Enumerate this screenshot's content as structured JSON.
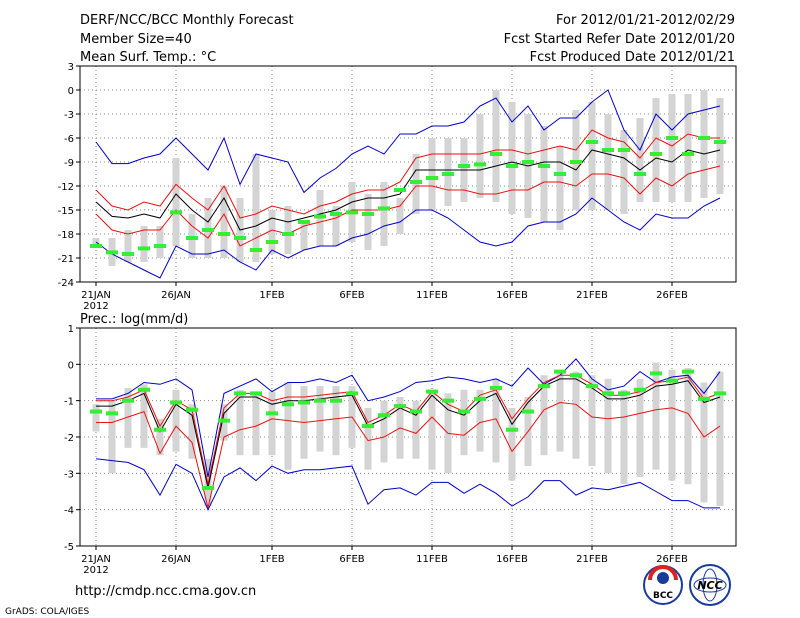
{
  "header": {
    "title": "DERF/NCC/BCC Monthly Forecast",
    "member_size": "Member Size=40",
    "variable": "Mean Surf. Temp.: °C",
    "period": "For 2012/01/21-2012/02/29",
    "started": "Fcst Started Refer Date 2012/01/20",
    "produced": "Fcst Produced Date 2012/01/21"
  },
  "footer": {
    "url": "http://cmdp.ncc.cma.gov.cn",
    "credit": "GrADS: COLA/IGES",
    "logo_bcc": "BCC",
    "logo_ncc": "NCC"
  },
  "colors": {
    "envelope": "#0000cc",
    "spread": "#ee1111",
    "mean": "#000000",
    "box": "#d4d4d4",
    "marker": "#33ee33",
    "grid": "#888888"
  },
  "x_tick_labels": [
    "21JAN",
    "26JAN",
    "1FEB",
    "6FEB",
    "11FEB",
    "16FEB",
    "21FEB",
    "26FEB"
  ],
  "x_year_label": "2012",
  "chart_data": [
    {
      "type": "line",
      "title": "Mean Surf. Temp.: °C",
      "x_days": 40,
      "x_tick_day_index": [
        0,
        5,
        11,
        16,
        21,
        26,
        31,
        36
      ],
      "ylim": [
        -24,
        3
      ],
      "yticks": [
        3,
        0,
        -3,
        -6,
        -9,
        -12,
        -15,
        -18,
        -21,
        -24
      ],
      "series": [
        {
          "name": "max",
          "values": [
            -6.5,
            -9.2,
            -9.2,
            -8.5,
            -8.0,
            -6.0,
            -8.0,
            -10.0,
            -6.0,
            -11.8,
            -8.0,
            -8.5,
            -9.0,
            -12.8,
            -11.0,
            -9.8,
            -8.0,
            -7.0,
            -8.0,
            -5.5,
            -5.5,
            -4.5,
            -4.5,
            -4.0,
            -2.0,
            -1.0,
            -4.0,
            -2.0,
            -5.0,
            -3.5,
            -3.5,
            -1.5,
            0.0,
            -5.0,
            -7.5,
            -3.0,
            -5.0,
            -3.0,
            -2.5,
            -2.0
          ]
        },
        {
          "name": "upper",
          "values": [
            -12.5,
            -14.5,
            -15.0,
            -14.0,
            -14.5,
            -11.8,
            -13.5,
            -15.0,
            -12.0,
            -16.0,
            -15.5,
            -14.5,
            -15.0,
            -15.5,
            -14.5,
            -14.0,
            -13.0,
            -12.5,
            -12.5,
            -11.5,
            -8.5,
            -8.0,
            -8.0,
            -8.0,
            -8.0,
            -7.5,
            -7.5,
            -8.0,
            -7.5,
            -7.0,
            -7.5,
            -5.0,
            -6.0,
            -6.5,
            -8.5,
            -6.0,
            -7.0,
            -5.5,
            -6.0,
            -6.0
          ]
        },
        {
          "name": "mean",
          "values": [
            -14.0,
            -15.8,
            -16.0,
            -15.5,
            -16.0,
            -13.0,
            -15.0,
            -16.5,
            -13.5,
            -17.5,
            -17.0,
            -16.0,
            -16.5,
            -16.0,
            -15.5,
            -15.0,
            -14.0,
            -13.5,
            -13.5,
            -13.0,
            -10.0,
            -10.0,
            -10.0,
            -10.0,
            -10.0,
            -9.5,
            -9.0,
            -9.5,
            -9.0,
            -9.0,
            -10.0,
            -7.5,
            -8.0,
            -8.5,
            -10.0,
            -8.5,
            -9.0,
            -7.5,
            -8.0,
            -7.5
          ]
        },
        {
          "name": "lower",
          "values": [
            -15.5,
            -17.5,
            -18.0,
            -17.5,
            -17.5,
            -15.0,
            -17.0,
            -18.5,
            -15.5,
            -19.5,
            -18.5,
            -17.5,
            -18.0,
            -17.0,
            -16.5,
            -16.0,
            -15.0,
            -15.0,
            -15.0,
            -14.5,
            -12.0,
            -12.0,
            -12.5,
            -12.5,
            -13.0,
            -13.0,
            -12.5,
            -12.5,
            -11.5,
            -11.5,
            -12.0,
            -10.5,
            -10.5,
            -11.0,
            -13.0,
            -11.0,
            -12.0,
            -10.5,
            -10.0,
            -9.5
          ]
        },
        {
          "name": "min",
          "values": [
            -19.0,
            -20.5,
            -21.5,
            -22.5,
            -23.5,
            -19.5,
            -20.5,
            -20.5,
            -20.0,
            -21.5,
            -22.5,
            -20.0,
            -21.0,
            -20.0,
            -19.5,
            -19.5,
            -18.5,
            -18.0,
            -17.0,
            -16.5,
            -15.0,
            -15.0,
            -16.0,
            -17.5,
            -19.0,
            -19.5,
            -19.0,
            -17.0,
            -16.5,
            -16.5,
            -15.5,
            -13.5,
            -15.0,
            -16.5,
            -17.5,
            -15.5,
            -16.0,
            -16.0,
            -14.5,
            -13.5
          ]
        }
      ],
      "boxes": [
        {
          "min": -19.5,
          "max": -18.5
        },
        {
          "min": -22.0,
          "max": -18.5
        },
        {
          "min": -21.5,
          "max": -17.5
        },
        {
          "min": -21.5,
          "max": -17.0
        },
        {
          "min": -21.0,
          "max": -17.0
        },
        {
          "min": -19.5,
          "max": -8.5
        },
        {
          "min": -21.0,
          "max": -15.5
        },
        {
          "min": -21.0,
          "max": -13.5
        },
        {
          "min": -21.0,
          "max": -12.0
        },
        {
          "min": -21.5,
          "max": -13.5
        },
        {
          "min": -21.5,
          "max": -8.0
        },
        {
          "min": -20.5,
          "max": -15.0
        },
        {
          "min": -20.5,
          "max": -14.5
        },
        {
          "min": -20.0,
          "max": -16.5
        },
        {
          "min": -19.5,
          "max": -12.5
        },
        {
          "min": -19.5,
          "max": -14.5
        },
        {
          "min": -19.0,
          "max": -11.5
        },
        {
          "min": -20.0,
          "max": -13.0
        },
        {
          "min": -19.5,
          "max": -11.5
        },
        {
          "min": -18.0,
          "max": -13.5
        },
        {
          "min": -15.5,
          "max": -8.0
        },
        {
          "min": -15.0,
          "max": -6.0
        },
        {
          "min": -14.5,
          "max": -6.0
        },
        {
          "min": -14.0,
          "max": -6.0
        },
        {
          "min": -13.5,
          "max": -3.0
        },
        {
          "min": -14.0,
          "max": 0.0
        },
        {
          "min": -15.5,
          "max": -1.5
        },
        {
          "min": -16.0,
          "max": -3.0
        },
        {
          "min": -16.5,
          "max": -4.5
        },
        {
          "min": -17.5,
          "max": -7.0
        },
        {
          "min": -15.0,
          "max": -2.5
        },
        {
          "min": -15.0,
          "max": -1.5
        },
        {
          "min": -15.0,
          "max": -3.0
        },
        {
          "min": -15.5,
          "max": -5.0
        },
        {
          "min": -14.0,
          "max": -3.5
        },
        {
          "min": -14.0,
          "max": -1.0
        },
        {
          "min": -14.0,
          "max": -0.5
        },
        {
          "min": -14.0,
          "max": -0.5
        },
        {
          "min": -13.5,
          "max": 0.0
        },
        {
          "min": -13.0,
          "max": -1.0
        }
      ],
      "markers": [
        -19.5,
        -20.3,
        -20.5,
        -19.8,
        -19.5,
        -15.3,
        -18.5,
        -17.5,
        -18.0,
        -18.5,
        -20.0,
        -19.0,
        -18.0,
        -16.5,
        -15.8,
        -15.5,
        -15.3,
        -15.5,
        -14.8,
        -12.5,
        -11.5,
        -11.0,
        -10.5,
        -9.5,
        -9.3,
        -8.0,
        -9.5,
        -9.0,
        -9.5,
        -10.5,
        -9.0,
        -6.5,
        -7.5,
        -7.5,
        -10.5,
        -8.0,
        -6.0,
        -8.0,
        -6.0,
        -6.5
      ]
    },
    {
      "type": "line",
      "title": "Prec.: log(mm/d)",
      "x_days": 40,
      "x_tick_day_index": [
        0,
        5,
        11,
        16,
        21,
        26,
        31,
        36
      ],
      "ylim": [
        -5,
        1
      ],
      "yticks": [
        1,
        0,
        -1,
        -2,
        -3,
        -4,
        -5
      ],
      "series": [
        {
          "name": "max",
          "values": [
            -0.95,
            -0.95,
            -0.8,
            -0.5,
            -0.55,
            -0.4,
            -0.7,
            -3.1,
            -0.8,
            -0.6,
            -0.4,
            -0.75,
            -0.5,
            -0.5,
            -0.4,
            -0.5,
            -0.3,
            -1.0,
            -0.9,
            -0.75,
            -0.5,
            -0.45,
            -0.35,
            -0.4,
            -0.5,
            -0.4,
            -0.6,
            -0.1,
            -0.55,
            -0.3,
            0.15,
            -0.4,
            -0.7,
            -0.6,
            -0.2,
            -0.5,
            -0.35,
            -0.3,
            -0.8,
            -0.2
          ]
        },
        {
          "name": "upper",
          "values": [
            -1.0,
            -1.0,
            -0.9,
            -0.7,
            -1.7,
            -1.0,
            -1.25,
            -3.3,
            -1.2,
            -0.8,
            -0.8,
            -1.0,
            -0.9,
            -0.9,
            -0.85,
            -0.8,
            -0.75,
            -1.6,
            -1.4,
            -1.1,
            -1.3,
            -0.75,
            -1.1,
            -1.3,
            -0.85,
            -0.7,
            -1.5,
            -0.95,
            -0.5,
            -0.3,
            -0.3,
            -0.55,
            -0.85,
            -0.85,
            -0.75,
            -0.5,
            -0.45,
            -0.35,
            -0.95,
            -0.8
          ]
        },
        {
          "name": "mean",
          "values": [
            -1.15,
            -1.15,
            -1.0,
            -0.8,
            -1.85,
            -1.1,
            -1.4,
            -3.4,
            -1.35,
            -0.9,
            -0.9,
            -1.1,
            -1.0,
            -1.0,
            -0.95,
            -0.9,
            -0.85,
            -1.7,
            -1.5,
            -1.2,
            -1.4,
            -0.85,
            -1.25,
            -1.4,
            -1.0,
            -0.8,
            -1.65,
            -1.05,
            -0.6,
            -0.4,
            -0.4,
            -0.65,
            -0.95,
            -0.95,
            -0.85,
            -0.6,
            -0.55,
            -0.45,
            -1.05,
            -0.9
          ]
        },
        {
          "name": "lower",
          "values": [
            -1.6,
            -1.6,
            -1.45,
            -1.3,
            -2.45,
            -1.7,
            -2.15,
            -3.95,
            -2.0,
            -1.8,
            -1.7,
            -1.5,
            -1.55,
            -1.6,
            -1.55,
            -1.5,
            -1.45,
            -2.1,
            -2.0,
            -1.75,
            -1.9,
            -1.45,
            -1.9,
            -1.95,
            -1.6,
            -1.5,
            -2.4,
            -1.85,
            -1.25,
            -1.05,
            -1.1,
            -1.45,
            -1.5,
            -1.45,
            -1.35,
            -1.25,
            -1.2,
            -1.35,
            -2.0,
            -1.7
          ]
        },
        {
          "name": "min",
          "values": [
            -2.6,
            -2.65,
            -2.7,
            -2.9,
            -3.6,
            -2.75,
            -3.0,
            -4.0,
            -3.1,
            -2.85,
            -3.2,
            -2.8,
            -3.0,
            -2.9,
            -2.9,
            -2.85,
            -2.8,
            -3.85,
            -3.45,
            -3.4,
            -3.6,
            -3.25,
            -3.25,
            -3.55,
            -3.3,
            -3.55,
            -3.9,
            -3.65,
            -3.2,
            -3.2,
            -3.6,
            -3.4,
            -3.45,
            -3.35,
            -3.25,
            -3.5,
            -3.75,
            -3.75,
            -3.95,
            -3.95
          ]
        },
        {
          "name": "min_extended_marker",
          "values": []
        }
      ],
      "boxes": [
        {
          "min": -1.85,
          "max": -1.1
        },
        {
          "min": -3.0,
          "max": -1.0
        },
        {
          "min": -2.3,
          "max": -0.65
        },
        {
          "min": -2.3,
          "max": -0.55
        },
        {
          "min": -2.5,
          "max": -1.5
        },
        {
          "min": -2.4,
          "max": -0.7
        },
        {
          "min": -2.6,
          "max": -1.1
        },
        {
          "min": -3.9,
          "max": -2.6
        },
        {
          "min": -2.1,
          "max": -1.1
        },
        {
          "min": -2.5,
          "max": -0.7
        },
        {
          "min": -2.5,
          "max": -0.8
        },
        {
          "min": -2.5,
          "max": -0.75
        },
        {
          "min": -2.9,
          "max": -0.5
        },
        {
          "min": -2.6,
          "max": -0.6
        },
        {
          "min": -2.4,
          "max": -0.6
        },
        {
          "min": -2.5,
          "max": -0.6
        },
        {
          "min": -2.3,
          "max": -0.6
        },
        {
          "min": -2.9,
          "max": -1.2
        },
        {
          "min": -2.7,
          "max": -1.0
        },
        {
          "min": -2.6,
          "max": -0.9
        },
        {
          "min": -2.6,
          "max": -1.0
        },
        {
          "min": -2.9,
          "max": -0.8
        },
        {
          "min": -3.0,
          "max": -0.8
        },
        {
          "min": -2.5,
          "max": -0.7
        },
        {
          "min": -2.4,
          "max": -0.7
        },
        {
          "min": -2.7,
          "max": -0.4
        },
        {
          "min": -3.2,
          "max": -1.2
        },
        {
          "min": -2.8,
          "max": -0.9
        },
        {
          "min": -2.5,
          "max": -0.3
        },
        {
          "min": -2.4,
          "max": -0.2
        },
        {
          "min": -2.6,
          "max": -0.2
        },
        {
          "min": -2.8,
          "max": -0.3
        },
        {
          "min": -3.0,
          "max": -0.4
        },
        {
          "min": -3.3,
          "max": -0.7
        },
        {
          "min": -3.1,
          "max": -0.4
        },
        {
          "min": -2.9,
          "max": 0.05
        },
        {
          "min": -3.2,
          "max": -0.15
        },
        {
          "min": -3.3,
          "max": -0.1
        },
        {
          "min": -3.8,
          "max": -0.5
        },
        {
          "min": -3.9,
          "max": -0.2
        }
      ],
      "markers": [
        -1.3,
        -1.35,
        -1.0,
        -0.7,
        -1.8,
        -1.05,
        -1.25,
        -3.4,
        -1.55,
        -0.8,
        -0.8,
        -1.35,
        -1.1,
        -1.05,
        -1.0,
        -1.0,
        -0.8,
        -1.7,
        -1.4,
        -1.15,
        -1.3,
        -0.75,
        -1.0,
        -1.3,
        -0.95,
        -0.65,
        -1.8,
        -1.3,
        -0.6,
        -0.2,
        -0.3,
        -0.6,
        -0.8,
        -0.8,
        -0.7,
        -0.25,
        -0.45,
        -0.2,
        -0.95,
        -0.8
      ]
    }
  ]
}
